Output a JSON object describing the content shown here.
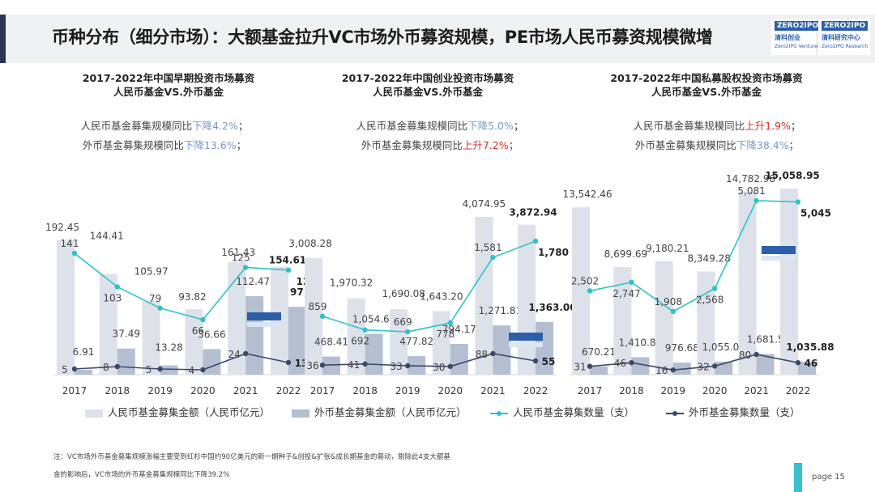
{
  "title": "币种分布（细分市场）：大额基金拉升VC市场外币募资规模，PE市场人民币募资规模微增",
  "logo": {
    "top": "ZERO2IPO",
    "cn": "清科创业",
    "en": "Zero2IPO Ventures"
  },
  "logo2": {
    "top": "ZERO2IPO",
    "cn": "清科研究中心",
    "en": "Zero2IPO Research"
  },
  "panels": [
    {
      "title_line1": "2017-2022年中国早期投资市场募资",
      "title_line2": "人民币基金VS.外币基金",
      "note1_prefix": "人民币基金募集规模同比",
      "note1_change": "下降4.2%",
      "note1_suffix": "；",
      "note2_prefix": "外币基金募集规模同比",
      "note2_change": "下降13.6%",
      "note2_suffix": "；"
    },
    {
      "title_line1": "2017-2022年中国创业投资市场募资",
      "title_line2": "人民币基金VS.外币基金",
      "note1_prefix": "人民币基金募集规模同比",
      "note1_change": "下降5.0%",
      "note1_suffix": "；",
      "note2_prefix": "外币基金募集规模同比",
      "note2_change": "上升7.2%",
      "note2_suffix": "；"
    },
    {
      "title_line1": "2017-2022年中国私募股权投资市场募资",
      "title_line2": "人民币基金VS.外币基金",
      "note1_prefix": "人民币基金募集规模同比",
      "note1_change": "上升1.9%",
      "note1_suffix": "；",
      "note2_prefix": "外币基金募集规模同比",
      "note2_change": "下降38.4%",
      "note2_suffix": "；"
    }
  ],
  "legend": {
    "rmb_amount": "人民币基金募集金额（人民币亿元）",
    "fx_amount": "外币基金募集金额（人民币亿元）",
    "rmb_count": "人民币基金募集数量（支）",
    "fx_count": "外币基金募集数量（支）"
  },
  "colors": {
    "rmb_bar": "#dde1ea",
    "fx_bar": "#b4bfd2",
    "rmb_line": "#2ec3c9",
    "fx_line": "#3d4a66"
  },
  "chart_data": [
    {
      "type": "bar",
      "name": "早期投资市场",
      "categories": [
        "2017",
        "2018",
        "2019",
        "2020",
        "2021",
        "2022"
      ],
      "series": [
        {
          "name": "人民币基金募集金额（人民币亿元）",
          "kind": "bar",
          "values": [
            192.45,
            144.41,
            105.97,
            93.82,
            161.43,
            154.61
          ]
        },
        {
          "name": "外币基金募集金额（人民币亿元）",
          "kind": "bar",
          "values": [
            6.91,
            37.49,
            13.28,
            36.66,
            112.47,
            97.18
          ]
        },
        {
          "name": "人民币基金募集数量（支）",
          "kind": "line",
          "values": [
            141,
            103,
            79,
            66,
            125,
            122
          ]
        },
        {
          "name": "外币基金募集数量（支）",
          "kind": "line",
          "values": [
            5,
            8,
            5,
            4,
            24,
            13
          ]
        }
      ]
    },
    {
      "type": "bar",
      "name": "创业投资市场",
      "categories": [
        "2017",
        "2018",
        "2019",
        "2020",
        "2021",
        "2022"
      ],
      "series": [
        {
          "name": "人民币基金募集金额（人民币亿元）",
          "kind": "bar",
          "values": [
            3008.28,
            1970.32,
            1690.08,
            1643.2,
            4074.95,
            3872.94
          ]
        },
        {
          "name": "外币基金募集金额（人民币亿元）",
          "kind": "bar",
          "values": [
            468.41,
            1054.64,
            477.82,
            794.17,
            1271.81,
            1363.0
          ]
        },
        {
          "name": "人民币基金募集数量（支）",
          "kind": "line",
          "values": [
            859,
            692,
            669,
            778,
            1581,
            1780
          ]
        },
        {
          "name": "外币基金募集数量（支）",
          "kind": "line",
          "values": [
            36,
            41,
            33,
            30,
            88,
            55
          ]
        }
      ]
    },
    {
      "type": "bar",
      "name": "私募股权投资市场",
      "categories": [
        "2017",
        "2018",
        "2019",
        "2020",
        "2021",
        "2022"
      ],
      "series": [
        {
          "name": "人民币基金募集金额（人民币亿元）",
          "kind": "bar",
          "values": [
            13542.46,
            8699.69,
            9180.21,
            8349.28,
            14782.98,
            15058.95
          ]
        },
        {
          "name": "外币基金募集金额（人民币亿元）",
          "kind": "bar",
          "values": [
            670.21,
            1410.86,
            976.68,
            1055.01,
            1681.55,
            1035.88
          ]
        },
        {
          "name": "人民币基金募集数量（支）",
          "kind": "line",
          "values": [
            2502,
            2747,
            1908,
            2568,
            5081,
            5045
          ]
        },
        {
          "name": "外币基金募集数量（支）",
          "kind": "line",
          "values": [
            31,
            46,
            16,
            32,
            80,
            46
          ]
        }
      ]
    }
  ],
  "labels": {
    "rmb_amount": [
      [
        "192.45",
        "144.41",
        "105.97",
        "93.82",
        "161.43",
        "154.61"
      ],
      [
        "3,008.28",
        "1,970.32",
        "1,690.08",
        "1,643.20",
        "4,074.95",
        "3,872.94"
      ],
      [
        "13,542.46",
        "8,699.69",
        "9,180.21",
        "8,349.28",
        "14,782.98",
        "15,058.95"
      ]
    ],
    "fx_amount": [
      [
        "6.91",
        "37.49",
        "13.28",
        "36.66",
        "112.47",
        "97.18"
      ],
      [
        "468.41",
        "1,054.64",
        "477.82",
        "794.17",
        "1,271.81",
        "1,363.00"
      ],
      [
        "670.21",
        "1,410.86",
        "976.68",
        "1,055.01",
        "1,681.55",
        "1,035.88"
      ]
    ],
    "rmb_count": [
      [
        "141",
        "103",
        "79",
        "66",
        "125",
        "122"
      ],
      [
        "859",
        "692",
        "669",
        "778",
        "1,581",
        "1,780"
      ],
      [
        "2,502",
        "2,747",
        "1,908",
        "2,568",
        "5,081",
        "5,045"
      ]
    ],
    "fx_count": [
      [
        "5",
        "8",
        "5",
        "4",
        "24",
        "13"
      ],
      [
        "36",
        "41",
        "33",
        "30",
        "88",
        "55"
      ],
      [
        "31",
        "46",
        "16",
        "32",
        "80",
        "46"
      ]
    ]
  },
  "footnote_line1": "注：VC市场外币基金募集规模涨幅主要受到红杉中国约90亿美元的新一期种子&创投&扩张&成长期基金的募动，剔除此4支大额基",
  "footnote_line2": "金的影响后，VC市场的外币基金募集规模同比下降39.2%",
  "page_label": "page  15"
}
